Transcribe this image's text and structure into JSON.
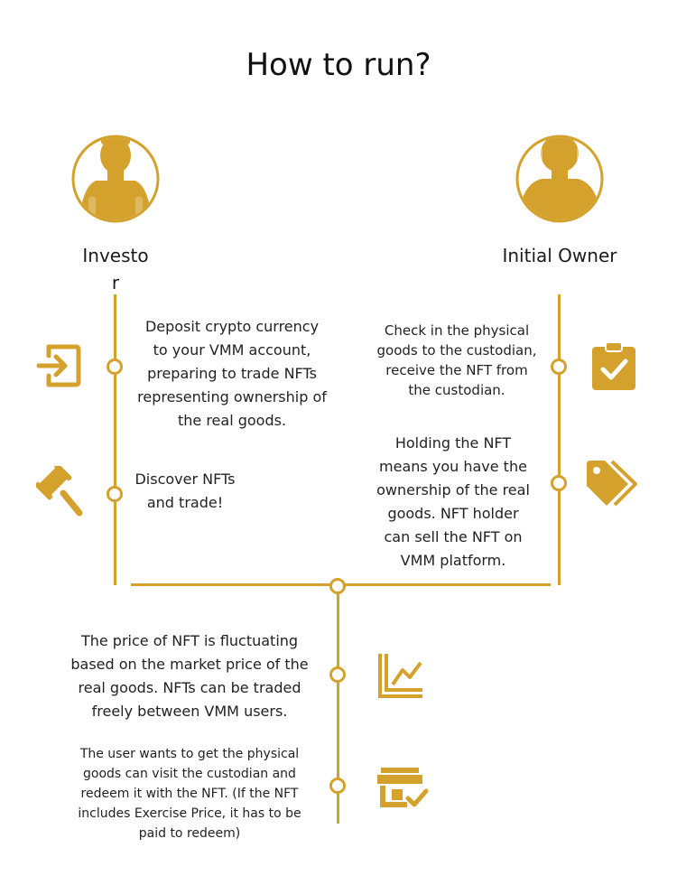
{
  "colors": {
    "accent": "#d4a22c",
    "text": "#1b1b1b",
    "background": "#ffffff"
  },
  "title": "How to run?",
  "roles": {
    "investor": {
      "label_line1": "Investo",
      "label_line2": "r",
      "icon": "investor-avatar-icon"
    },
    "initial_owner": {
      "label": "Initial Owner",
      "icon": "owner-avatar-icon"
    }
  },
  "investor_steps": [
    {
      "lines": [
        "Deposit crypto currency",
        "to your VMM account,",
        "preparing to trade NFTs",
        "representing ownership of",
        "the real goods."
      ],
      "icon": "login-icon"
    },
    {
      "lines": [
        "Discover NFTs",
        "and trade!"
      ],
      "icon": "gavel-icon"
    }
  ],
  "owner_steps": [
    {
      "lines": [
        "Check in the physical",
        "goods to the custodian,",
        "receive the NFT from",
        "the custodian."
      ],
      "icon": "clipboard-check-icon"
    },
    {
      "lines": [
        "Holding the NFT",
        "means you have the",
        "ownership of the real",
        "goods. NFT holder",
        "can sell the NFT on",
        "VMM platform."
      ],
      "icon": "price-tag-icon"
    }
  ],
  "shared_steps": [
    {
      "lines": [
        "The price of NFT is fluctuating",
        "based on the market price of the",
        "real goods. NFTs can be traded",
        "freely between VMM users."
      ],
      "icon": "line-chart-icon"
    },
    {
      "lines": [
        "The user wants to get the physical",
        "goods can visit the custodian and",
        "redeem it with the NFT. (If the NFT",
        "includes Exercise Price, it has to be",
        "paid to redeem)"
      ],
      "icon": "store-check-icon"
    }
  ]
}
